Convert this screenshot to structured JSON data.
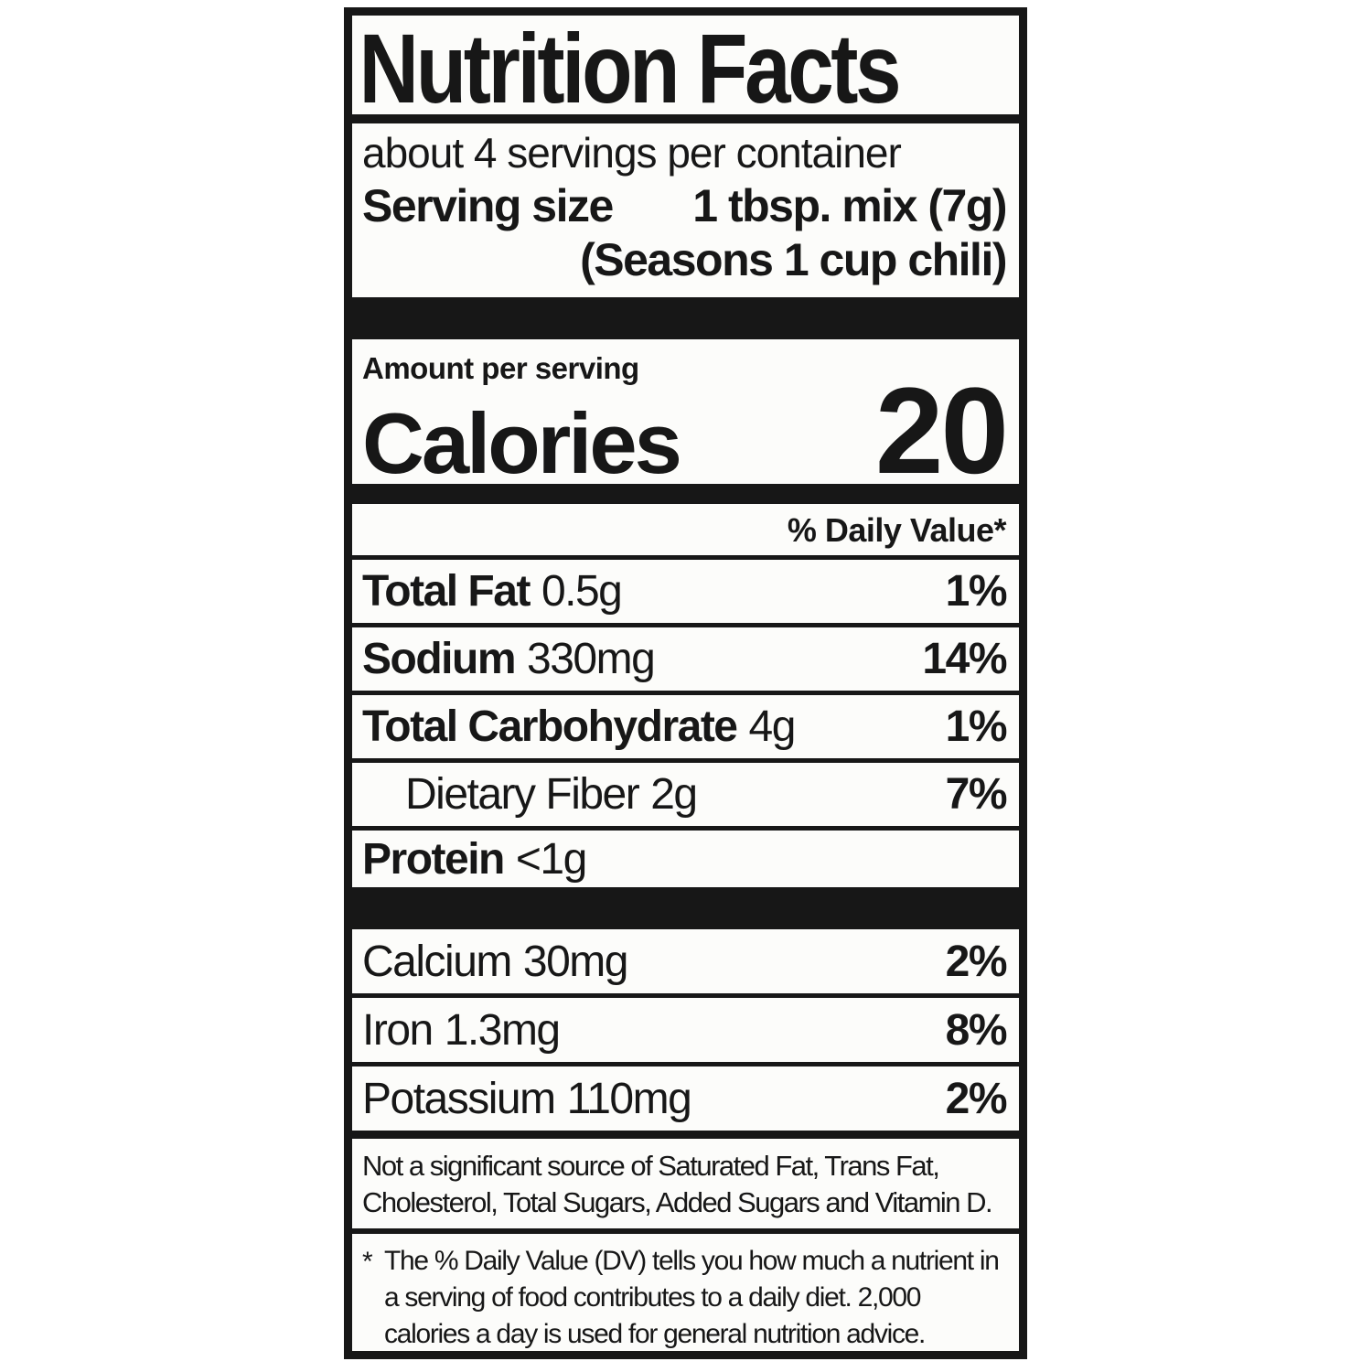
{
  "nutrition_label": {
    "title": "Nutrition Facts",
    "servings_per_container": "about 4 servings per container",
    "serving_size": {
      "label": "Serving size",
      "value": "1 tbsp. mix (7g)",
      "note": "(Seasons 1 cup chili)"
    },
    "calories": {
      "context": "Amount per serving",
      "label": "Calories",
      "value": "20"
    },
    "daily_value_header": "% Daily Value*",
    "nutrients": [
      {
        "name": "Total Fat",
        "amount": "0.5g",
        "dv": "1%"
      },
      {
        "name": "Sodium",
        "amount": "330mg",
        "dv": "14%"
      },
      {
        "name": "Total Carbohydrate",
        "amount": "4g",
        "dv": "1%"
      },
      {
        "name": "Dietary Fiber",
        "amount": "2g",
        "dv": "7%"
      },
      {
        "name": "Protein",
        "amount": "<1g",
        "dv": ""
      }
    ],
    "minerals": [
      {
        "name": "Calcium",
        "amount": "30mg",
        "dv": "2%"
      },
      {
        "name": "Iron",
        "amount": "1.3mg",
        "dv": "8%"
      },
      {
        "name": "Potassium",
        "amount": "110mg",
        "dv": "2%"
      }
    ],
    "not_significant_note": "Not a significant source of Saturated Fat, Trans Fat, Cholesterol, Total Sugars, Added Sugars and Vitamin D.",
    "footnote_marker": "*",
    "footnote": "The % Daily Value (DV) tells you how much a nutrient in a serving of food contributes to a daily diet. 2,000 calories a day is used for general nutrition advice.",
    "colors": {
      "ink": "#171717",
      "paper": "#fcfcfa"
    }
  }
}
